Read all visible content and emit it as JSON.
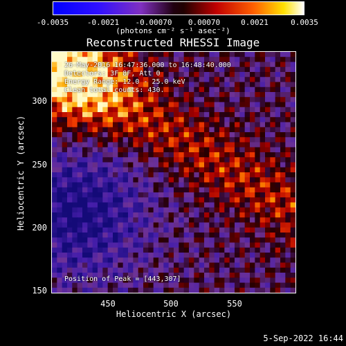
{
  "colorbar": {
    "ticks": [
      "-0.0035",
      "-0.0021",
      "-0.00070",
      "0.00070",
      "0.0021",
      "0.0035"
    ],
    "units": "(photons cm⁻² s⁻¹ asec⁻²)"
  },
  "title": "Reconstructed RHESSI Image",
  "annotations": {
    "time": "26-May-2016 16:47:36.000 to 16:48:40.000",
    "detectors": "Detectors: 3F 8F, Att 0",
    "energy": "Energy Range: 12.0 - 25.0 keV",
    "clean": "Clean    total counts: 430.",
    "peak": "Position of Peak = [443,307]"
  },
  "axes": {
    "xlabel": "Heliocentric X (arcsec)",
    "ylabel": "Heliocentric Y (arcsec)",
    "xticks": [
      "450",
      "500",
      "550"
    ],
    "yticks": [
      "300",
      "250",
      "200",
      "150"
    ]
  },
  "timestamp": "5-Sep-2022 16:44"
}
